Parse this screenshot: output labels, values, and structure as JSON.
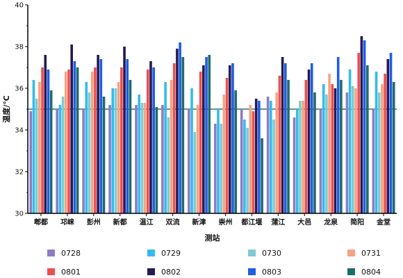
{
  "chart_data": {
    "type": "bar",
    "title": "",
    "xlabel": "测站",
    "ylabel": "温度/℃",
    "ylim": [
      30,
      40
    ],
    "yticks": [
      30,
      32,
      34,
      36,
      38,
      40
    ],
    "reference_line": 35,
    "reference_line_color": "#2f6f6f",
    "legend_position": "bottom",
    "categories": [
      "郫都",
      "邛崃",
      "彭州",
      "新都",
      "温江",
      "双流",
      "新津",
      "崇州",
      "都江堰",
      "蒲江",
      "大邑",
      "龙泉",
      "简阳",
      "金堂"
    ],
    "series": [
      {
        "name": "0728",
        "color": "#8e7cc3",
        "values": [
          34.9,
          35.0,
          35.0,
          35.2,
          35.2,
          35.2,
          35.0,
          34.3,
          35.0,
          35.6,
          34.6,
          35.0,
          35.8,
          35.0
        ]
      },
      {
        "name": "0729",
        "color": "#33bbee",
        "values": [
          36.4,
          35.2,
          36.3,
          36.0,
          35.7,
          36.3,
          36.0,
          35.0,
          34.5,
          35.4,
          35.0,
          36.2,
          36.9,
          36.8
        ]
      },
      {
        "name": "0730",
        "color": "#7ecbd3",
        "values": [
          35.5,
          35.6,
          35.8,
          36.0,
          35.3,
          34.6,
          33.9,
          34.3,
          34.1,
          34.5,
          35.4,
          35.7,
          36.1,
          35.8
        ]
      },
      {
        "name": "0731",
        "color": "#f4a383",
        "values": [
          36.3,
          36.8,
          36.8,
          36.3,
          35.3,
          36.4,
          35.2,
          35.7,
          35.2,
          35.8,
          35.4,
          36.7,
          36.0,
          36.2
        ]
      },
      {
        "name": "0801",
        "color": "#f04e4e",
        "values": [
          37.0,
          36.9,
          37.0,
          37.0,
          36.9,
          37.2,
          36.8,
          36.5,
          34.9,
          36.6,
          36.4,
          36.2,
          37.7,
          36.7
        ]
      },
      {
        "name": "0802",
        "color": "#251a54",
        "values": [
          37.6,
          38.1,
          37.6,
          38.0,
          37.3,
          37.9,
          37.1,
          37.1,
          35.5,
          37.5,
          36.9,
          36.0,
          38.5,
          37.4
        ]
      },
      {
        "name": "0803",
        "color": "#1f5de6",
        "values": [
          36.9,
          37.3,
          37.4,
          37.4,
          37.0,
          38.2,
          37.5,
          37.2,
          35.4,
          37.2,
          37.2,
          37.5,
          38.3,
          37.7
        ]
      },
      {
        "name": "0804",
        "color": "#1e6b6b",
        "values": [
          35.9,
          37.0,
          35.6,
          36.4,
          35.1,
          37.5,
          37.6,
          35.9,
          33.6,
          36.4,
          35.8,
          36.4,
          37.1,
          36.3
        ]
      }
    ]
  }
}
